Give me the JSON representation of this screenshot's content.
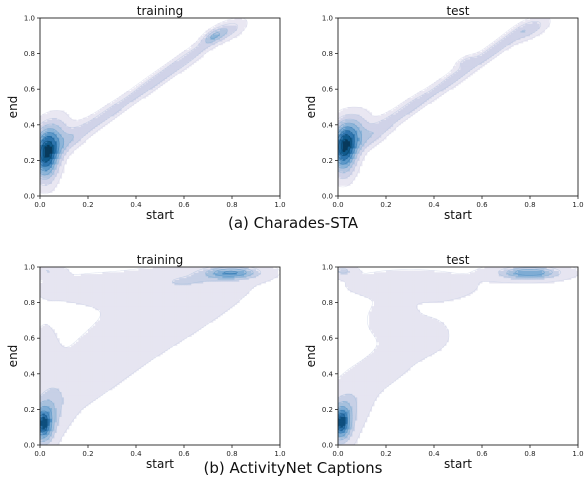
{
  "figure": {
    "captions": [
      "(a) Charades-STA",
      "(b) ActivityNet Captions"
    ]
  },
  "chart_data": [
    {
      "type": "heatmap",
      "title": "training",
      "xlabel": "start",
      "ylabel": "end",
      "xlim": [
        0.0,
        1.0
      ],
      "ylim": [
        0.0,
        1.0
      ],
      "xticks": [
        "0.0",
        "0.2",
        "0.4",
        "0.6",
        "0.8",
        "1.0"
      ],
      "yticks": [
        "0.0",
        "0.2",
        "0.4",
        "0.6",
        "0.8",
        "1.0"
      ],
      "levels": [
        0.12,
        0.25,
        0.38,
        0.5,
        0.62,
        0.74,
        0.86,
        0.95
      ],
      "level_colors": [
        "#e9e7f2",
        "#d0d3e8",
        "#b3c5e0",
        "#8db4d8",
        "#5d98c8",
        "#2e75ae",
        "#105a8c",
        "#083a5c"
      ],
      "density_components": [
        {
          "x": 0.02,
          "y": 0.22,
          "sx": 0.04,
          "sy": 0.11,
          "rho": 0.0,
          "w": 1.0
        },
        {
          "x": 0.05,
          "y": 0.32,
          "sx": 0.05,
          "sy": 0.1,
          "rho": 0.4,
          "w": 0.55
        },
        {
          "x": 0.14,
          "y": 0.33,
          "sx": 0.06,
          "sy": 0.07,
          "rho": 0.7,
          "w": 0.4
        },
        {
          "x": 0.28,
          "y": 0.46,
          "sx": 0.07,
          "sy": 0.07,
          "rho": 0.85,
          "w": 0.4
        },
        {
          "x": 0.45,
          "y": 0.62,
          "sx": 0.08,
          "sy": 0.08,
          "rho": 0.9,
          "w": 0.42
        },
        {
          "x": 0.62,
          "y": 0.78,
          "sx": 0.08,
          "sy": 0.08,
          "rho": 0.9,
          "w": 0.45
        },
        {
          "x": 0.78,
          "y": 0.93,
          "sx": 0.06,
          "sy": 0.05,
          "rho": 0.6,
          "w": 0.45
        },
        {
          "x": 0.72,
          "y": 0.9,
          "sx": 0.03,
          "sy": 0.03,
          "rho": 0.6,
          "w": 0.35
        }
      ]
    },
    {
      "type": "heatmap",
      "title": "test",
      "xlabel": "start",
      "ylabel": "end",
      "xlim": [
        0.0,
        1.0
      ],
      "ylim": [
        0.0,
        1.0
      ],
      "xticks": [
        "0.0",
        "0.2",
        "0.4",
        "0.6",
        "0.8",
        "1.0"
      ],
      "yticks": [
        "0.0",
        "0.2",
        "0.4",
        "0.6",
        "0.8",
        "1.0"
      ],
      "levels": [
        0.12,
        0.25,
        0.38,
        0.5,
        0.62,
        0.74,
        0.86,
        0.95
      ],
      "level_colors": [
        "#e9e7f2",
        "#d0d3e8",
        "#b3c5e0",
        "#8db4d8",
        "#5d98c8",
        "#2e75ae",
        "#105a8c",
        "#083a5c"
      ],
      "density_components": [
        {
          "x": 0.02,
          "y": 0.26,
          "sx": 0.04,
          "sy": 0.11,
          "rho": 0.0,
          "w": 1.0
        },
        {
          "x": 0.06,
          "y": 0.35,
          "sx": 0.05,
          "sy": 0.09,
          "rho": 0.4,
          "w": 0.55
        },
        {
          "x": 0.16,
          "y": 0.36,
          "sx": 0.06,
          "sy": 0.07,
          "rho": 0.7,
          "w": 0.4
        },
        {
          "x": 0.3,
          "y": 0.5,
          "sx": 0.07,
          "sy": 0.07,
          "rho": 0.85,
          "w": 0.4
        },
        {
          "x": 0.48,
          "y": 0.66,
          "sx": 0.08,
          "sy": 0.08,
          "rho": 0.9,
          "w": 0.42
        },
        {
          "x": 0.53,
          "y": 0.76,
          "sx": 0.03,
          "sy": 0.025,
          "rho": 0.6,
          "w": 0.3
        },
        {
          "x": 0.66,
          "y": 0.83,
          "sx": 0.07,
          "sy": 0.07,
          "rho": 0.9,
          "w": 0.45
        },
        {
          "x": 0.8,
          "y": 0.94,
          "sx": 0.06,
          "sy": 0.05,
          "rho": 0.6,
          "w": 0.45
        }
      ]
    },
    {
      "type": "heatmap",
      "title": "training",
      "xlabel": "start",
      "ylabel": "end",
      "xlim": [
        0.0,
        1.0
      ],
      "ylim": [
        0.0,
        1.0
      ],
      "xticks": [
        "0.0",
        "0.2",
        "0.4",
        "0.6",
        "0.8",
        "1.0"
      ],
      "yticks": [
        "0.0",
        "0.2",
        "0.4",
        "0.6",
        "0.8",
        "1.0"
      ],
      "levels": [
        0.05,
        0.25,
        0.4,
        0.55,
        0.7,
        0.82,
        0.92
      ],
      "level_colors": [
        "#e6e5f1",
        "#c7d0e6",
        "#a6c0dd",
        "#7eacd4",
        "#4f8fc3",
        "#2a6fa7",
        "#0e4f7e"
      ],
      "density_components": [
        {
          "x": 0.01,
          "y": 0.11,
          "sx": 0.03,
          "sy": 0.07,
          "rho": 0.0,
          "w": 1.0
        },
        {
          "x": 0.04,
          "y": 0.2,
          "sx": 0.05,
          "sy": 0.1,
          "rho": 0.3,
          "w": 0.35
        },
        {
          "x": 0.02,
          "y": 0.5,
          "sx": 0.04,
          "sy": 0.15,
          "rho": 0.0,
          "w": 0.12
        },
        {
          "x": 0.2,
          "y": 0.4,
          "sx": 0.2,
          "sy": 0.22,
          "rho": 0.8,
          "w": 0.14
        },
        {
          "x": 0.55,
          "y": 0.75,
          "sx": 0.25,
          "sy": 0.2,
          "rho": 0.7,
          "w": 0.13
        },
        {
          "x": 0.3,
          "y": 0.88,
          "sx": 0.25,
          "sy": 0.07,
          "rho": 0.0,
          "w": 0.14
        },
        {
          "x": 0.8,
          "y": 0.97,
          "sx": 0.08,
          "sy": 0.025,
          "rho": 0.0,
          "w": 0.85
        },
        {
          "x": 0.03,
          "y": 0.98,
          "sx": 0.04,
          "sy": 0.02,
          "rho": 0.0,
          "w": 0.3
        },
        {
          "x": 0.6,
          "y": 0.93,
          "sx": 0.12,
          "sy": 0.04,
          "rho": 0.0,
          "w": 0.2
        }
      ]
    },
    {
      "type": "heatmap",
      "title": "test",
      "xlabel": "start",
      "ylabel": "end",
      "xlim": [
        0.0,
        1.0
      ],
      "ylim": [
        0.0,
        1.0
      ],
      "xticks": [
        "0.0",
        "0.2",
        "0.4",
        "0.6",
        "0.8",
        "1.0"
      ],
      "yticks": [
        "0.0",
        "0.2",
        "0.4",
        "0.6",
        "0.8",
        "1.0"
      ],
      "levels": [
        0.05,
        0.25,
        0.4,
        0.55,
        0.7,
        0.82,
        0.92
      ],
      "level_colors": [
        "#e6e5f1",
        "#c7d0e6",
        "#a6c0dd",
        "#7eacd4",
        "#4f8fc3",
        "#2a6fa7",
        "#0e4f7e"
      ],
      "density_components": [
        {
          "x": 0.01,
          "y": 0.12,
          "sx": 0.03,
          "sy": 0.07,
          "rho": 0.0,
          "w": 1.0
        },
        {
          "x": 0.04,
          "y": 0.2,
          "sx": 0.05,
          "sy": 0.1,
          "rho": 0.3,
          "w": 0.3
        },
        {
          "x": 0.22,
          "y": 0.7,
          "sx": 0.06,
          "sy": 0.06,
          "rho": 0.0,
          "w": 0.22
        },
        {
          "x": 0.2,
          "y": 0.45,
          "sx": 0.16,
          "sy": 0.18,
          "rho": 0.8,
          "w": 0.12
        },
        {
          "x": 0.35,
          "y": 0.6,
          "sx": 0.08,
          "sy": 0.06,
          "rho": 0.0,
          "w": 0.1
        },
        {
          "x": 0.3,
          "y": 0.9,
          "sx": 0.22,
          "sy": 0.07,
          "rho": 0.0,
          "w": 0.13
        },
        {
          "x": 0.8,
          "y": 0.97,
          "sx": 0.09,
          "sy": 0.025,
          "rho": 0.0,
          "w": 0.85
        },
        {
          "x": 0.02,
          "y": 0.98,
          "sx": 0.03,
          "sy": 0.02,
          "rho": 0.0,
          "w": 0.35
        }
      ]
    }
  ]
}
